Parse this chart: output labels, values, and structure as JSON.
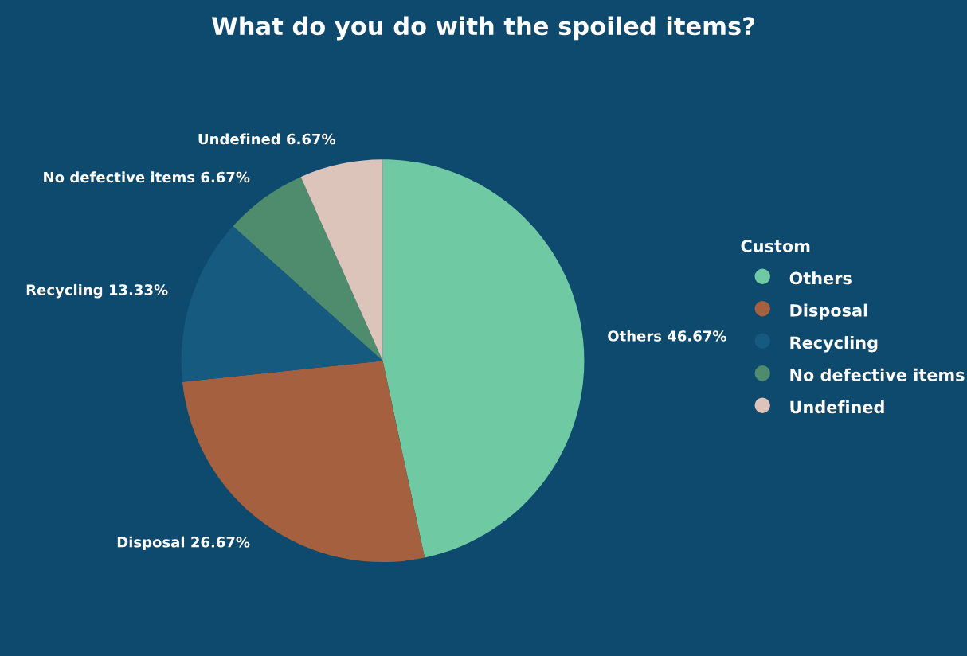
{
  "chart_data": {
    "type": "pie",
    "title": "What do you do with the spoiled items?",
    "legend_title": "Custom",
    "categories": [
      "Others",
      "Disposal",
      "Recycling",
      "No defective items",
      "Undefined"
    ],
    "values": [
      46.67,
      26.67,
      13.33,
      6.67,
      6.67
    ],
    "colors": [
      "#6fcaa3",
      "#a4603f",
      "#175a80",
      "#4f8b6d",
      "#dcc4bb"
    ],
    "value_labels": [
      "46.67%",
      "26.67%",
      "13.33%",
      "6.67%",
      "6.67%"
    ],
    "legend": "right"
  }
}
